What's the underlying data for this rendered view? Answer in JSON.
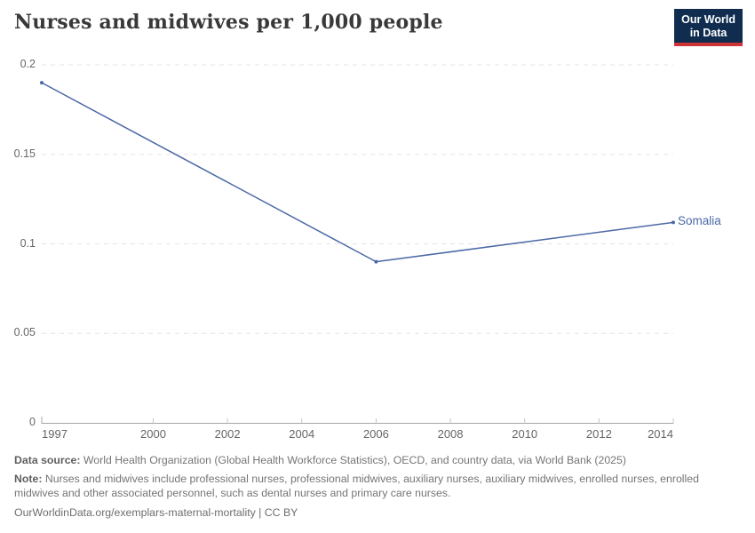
{
  "header": {
    "title": "Nurses and midwives per 1,000 people",
    "logo": {
      "line1": "Our World",
      "line2": "in Data"
    }
  },
  "chart_data": {
    "type": "line",
    "title": "Nurses and midwives per 1,000 people",
    "xlabel": "",
    "ylabel": "",
    "xlim": [
      1997,
      2014
    ],
    "ylim": [
      0,
      0.2
    ],
    "grid": "horizontal-dashed",
    "legend_position": "end-of-line",
    "x_ticks": [
      1997,
      2000,
      2002,
      2004,
      2006,
      2008,
      2010,
      2012,
      2014
    ],
    "x_tick_labels": [
      "1997",
      "2000",
      "2002",
      "2004",
      "2006",
      "2008",
      "2010",
      "2012",
      "2014"
    ],
    "y_ticks": [
      0,
      0.05,
      0.1,
      0.15,
      0.2
    ],
    "y_tick_labels": [
      "0",
      "0.05",
      "0.1",
      "0.15",
      "0.2"
    ],
    "series": [
      {
        "name": "Somalia",
        "color": "#4b69a6",
        "points": [
          {
            "x": 1997,
            "y": 0.19
          },
          {
            "x": 2006,
            "y": 0.09
          },
          {
            "x": 2014,
            "y": 0.112
          }
        ]
      }
    ]
  },
  "footer": {
    "datasource_label": "Data source:",
    "datasource_text": "World Health Organization (Global Health Workforce Statistics), OECD, and country data, via World Bank (2025)",
    "note_label": "Note:",
    "note_text": "Nurses and midwives include professional nurses, professional midwives, auxiliary nurses, auxiliary midwives, enrolled nurses, enrolled midwives and other associated personnel, such as dental nurses and primary care nurses.",
    "url_line": "OurWorldinData.org/exemplars-maternal-mortality | CC BY"
  },
  "colors": {
    "series_blue": "#4b69a6",
    "grid_line": "#e4e4e4",
    "axis_line": "#a6a6a6",
    "tick_mark": "#c4c4c4",
    "tick_text": "#666666",
    "title_text": "#393939",
    "footer_text": "#757575",
    "logo_bg": "#102d50",
    "logo_red": "#cf3335"
  }
}
